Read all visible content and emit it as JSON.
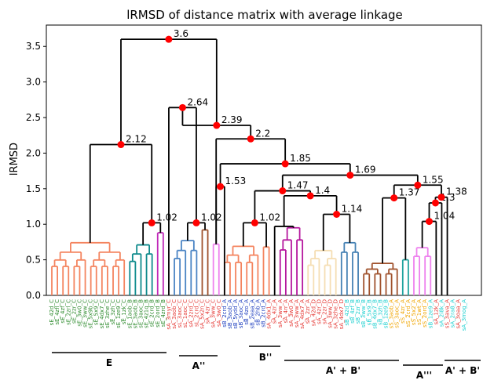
{
  "chart_data": {
    "type": "dendrogram",
    "title": "lRMSD of distance matrix with average linkage",
    "ylabel": "lRMSD",
    "xlabel": "",
    "ylim": [
      0,
      3.8
    ],
    "yticks": [
      "0.0",
      "0.5",
      "1.0",
      "1.5",
      "2.0",
      "2.5",
      "3.0",
      "3.5"
    ],
    "grid": false,
    "colors": {
      "E_orange": "#f4845f",
      "E_teal": "#0f8b8d",
      "E_magenta": "#c028b9",
      "Aii_salmon": "#e8735a",
      "Aii_blue": "#4a84c4",
      "Aii_brown": "#a0522d",
      "Bii_violet": "#ee82ee",
      "AB_salmon": "#f4845f",
      "AB_teal": "#20a39e",
      "AB_magenta": "#b5179e",
      "AB_cream": "#f5deb3",
      "AB_steelblue": "#4682b4",
      "Aiii_brown": "#a0522d",
      "AB2_violet": "#ee82ee",
      "link": "#000000",
      "node_marker": "#ff0000",
      "label_green": "#2e8b2e",
      "label_red": "#e53935",
      "label_blue": "#1f3fbf",
      "label_cyan": "#1fd0d0",
      "label_orange": "#f0a500"
    },
    "merges": [
      {
        "label": "3.6",
        "height": 3.6
      },
      {
        "label": "2.64",
        "height": 2.64
      },
      {
        "label": "2.39",
        "height": 2.39
      },
      {
        "label": "2.2",
        "height": 2.2
      },
      {
        "label": "2.12",
        "height": 2.12
      },
      {
        "label": "1.85",
        "height": 1.85
      },
      {
        "label": "1.69",
        "height": 1.69
      },
      {
        "label": "1.55",
        "height": 1.55
      },
      {
        "label": "1.53",
        "height": 1.53
      },
      {
        "label": "1.47",
        "height": 1.47
      },
      {
        "label": "1.4",
        "height": 1.4
      },
      {
        "label": "1.38",
        "height": 1.38
      },
      {
        "label": "1.37",
        "height": 1.37
      },
      {
        "label": "1.3",
        "height": 1.3
      },
      {
        "label": "1.14",
        "height": 1.14
      },
      {
        "label": "1.04",
        "height": 1.04
      },
      {
        "label": "1.02",
        "height": 1.02
      },
      {
        "label": "1.02",
        "height": 1.02
      },
      {
        "label": "1.02",
        "height": 1.02
      }
    ],
    "groups": [
      {
        "label": "E"
      },
      {
        "label": "A''"
      },
      {
        "label": "B''"
      },
      {
        "label": "A' + B'"
      },
      {
        "label": "A'''"
      },
      {
        "label": "A' + B'"
      }
    ],
    "leaf_labels": [
      "sE_42d_C",
      "sE_4zfl_C",
      "sE_4zf_C",
      "sE_2zrl_C",
      "sE_2zr_C",
      "sE_3w0_C",
      "sE_3ww_C",
      "sE_5x9b_C",
      "sE_5x9_C",
      "sE_4dx7_C",
      "sE_3zhe_C",
      "sE_3zh_C",
      "sE_1ze9_C",
      "sE_1zk_C",
      "sE_1aob_B",
      "sE_3aob_B",
      "sE_3aoc_B",
      "sE_4z1q_B",
      "sE_2crd_B",
      "sE_2ord_B",
      "sE_4zrd_B",
      "sA_3myr_C",
      "sA_3aob_C",
      "sL_3aoc_C",
      "sL_1aoc_C",
      "sA_2zrd_C",
      "sL_2crd_C",
      "sA_5x2n_C",
      "sA_4zr_C",
      "sA_3ww_C",
      "sA_3w0_C",
      "sB_2crd_A",
      "sB_3aob_A",
      "sB_5ydd_A",
      "sB_3aoc_A",
      "sB_4zo_A",
      "sB_2eaa_A",
      "sB_2hb_A",
      "sB_2crd_A",
      "sA_4dx1_A",
      "sA_4zr_A",
      "sA_3ww_A",
      "sA_4rr_A",
      "sA_3w0_A",
      "sA_3ww_A",
      "sA_4dx7_A",
      "sA_2zr_A",
      "sA_42d_D",
      "sA_4zr_D",
      "sA_2zr_D",
      "sA_3ww_D",
      "sA_3zhe_D",
      "sA_4dx7_D",
      "sB_42d_B",
      "sB_4zf_B",
      "sB_2zr_B",
      "sB_3ww_B",
      "sB_5x9_B",
      "sB_4dx7_B",
      "sB_3zh_B",
      "sB_1ze9_B",
      "sS_3aob_A",
      "sS_3aoc_A",
      "sS_4zr_A",
      "sS_2crd_A",
      "sS_5x2_A",
      "sS_1wt_A",
      "sS_2ord_A",
      "sB_1ze9_A",
      "sA_1zk_A",
      "sA_2i8k_A",
      "sS_3ava_A",
      "sA_2ra8_A",
      "sA_3oaa_A",
      "sA_3mog_A"
    ]
  }
}
